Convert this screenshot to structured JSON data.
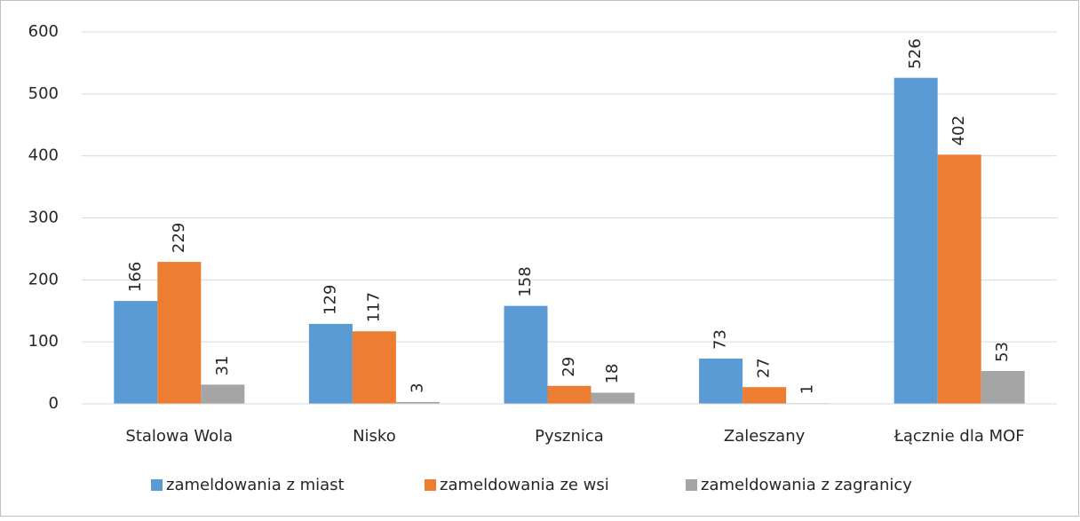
{
  "chart_data": {
    "type": "bar",
    "categories": [
      "Stalowa Wola",
      "Nisko",
      "Pysznica",
      "Zaleszany",
      "Łącznie dla MOF"
    ],
    "series": [
      {
        "name": "zameldowania z miast",
        "color": "#5b9bd5",
        "values": [
          166,
          129,
          158,
          73,
          526
        ]
      },
      {
        "name": "zameldowania ze wsi",
        "color": "#ed7d31",
        "values": [
          229,
          117,
          29,
          27,
          402
        ]
      },
      {
        "name": "zameldowania z zagranicy",
        "color": "#a5a5a5",
        "values": [
          31,
          3,
          18,
          1,
          53
        ]
      }
    ],
    "ylim": [
      0,
      600
    ],
    "yticks": [
      0,
      100,
      200,
      300,
      400,
      500,
      600
    ],
    "grid": true,
    "legend": "bottom"
  }
}
